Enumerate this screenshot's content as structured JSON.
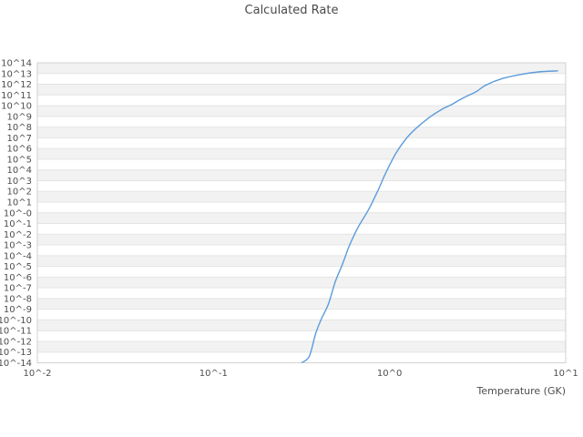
{
  "page": {
    "title": "Calculated Rate"
  },
  "chart_data": {
    "type": "line",
    "title": "Calculated Rate",
    "xlabel": "Temperature (GK)",
    "ylabel": "",
    "x_scale": "log10",
    "y_scale": "log10",
    "xlim_log10": [
      -2,
      1
    ],
    "ylim_log10": [
      -14,
      14
    ],
    "grid": "horizontal-stripes",
    "legend": "none",
    "x_ticks": [
      {
        "label": "10^-2",
        "log10": -2
      },
      {
        "label": "10^-1",
        "log10": -1
      },
      {
        "label": "10^0",
        "log10": 0
      },
      {
        "label": "10^1",
        "log10": 1
      }
    ],
    "y_ticks": [
      {
        "label": "10^14",
        "exp": 14
      },
      {
        "label": "10^13",
        "exp": 13
      },
      {
        "label": "10^12",
        "exp": 12
      },
      {
        "label": "10^11",
        "exp": 11
      },
      {
        "label": "10^10",
        "exp": 10
      },
      {
        "label": "10^9",
        "exp": 9
      },
      {
        "label": "10^8",
        "exp": 8
      },
      {
        "label": "10^7",
        "exp": 7
      },
      {
        "label": "10^6",
        "exp": 6
      },
      {
        "label": "10^5",
        "exp": 5
      },
      {
        "label": "10^4",
        "exp": 4
      },
      {
        "label": "10^3",
        "exp": 3
      },
      {
        "label": "10^2",
        "exp": 2
      },
      {
        "label": "10^1",
        "exp": 1
      },
      {
        "label": "10^-0",
        "exp": 0
      },
      {
        "label": "10^-1",
        "exp": -1
      },
      {
        "label": "10^-2",
        "exp": -2
      },
      {
        "label": "10^-3",
        "exp": -3
      },
      {
        "label": "10^-4",
        "exp": -4
      },
      {
        "label": "10^-5",
        "exp": -5
      },
      {
        "label": "10^-6",
        "exp": -6
      },
      {
        "label": "10^-7",
        "exp": -7
      },
      {
        "label": "10^-8",
        "exp": -8
      },
      {
        "label": "10^-9",
        "exp": -9
      },
      {
        "label": "10^-10",
        "exp": -10
      },
      {
        "label": "10^-11",
        "exp": -11
      },
      {
        "label": "10^-12",
        "exp": -12
      },
      {
        "label": "10^-13",
        "exp": -13
      },
      {
        "label": "10^-14",
        "exp": -14
      }
    ],
    "series": [
      {
        "name": "calculated-rate",
        "color": "#5b9cdc",
        "points_T_GK_log10rate": [
          [
            0.316,
            -14.0
          ],
          [
            0.35,
            -13.4
          ],
          [
            0.38,
            -11.3
          ],
          [
            0.41,
            -9.9
          ],
          [
            0.45,
            -8.5
          ],
          [
            0.49,
            -6.5
          ],
          [
            0.54,
            -4.8
          ],
          [
            0.59,
            -3.1
          ],
          [
            0.66,
            -1.4
          ],
          [
            0.76,
            0.3
          ],
          [
            0.86,
            2.1
          ],
          [
            0.95,
            3.7
          ],
          [
            1.1,
            5.7
          ],
          [
            1.3,
            7.3
          ],
          [
            1.65,
            8.8
          ],
          [
            2.0,
            9.7
          ],
          [
            2.25,
            10.1
          ],
          [
            2.6,
            10.7
          ],
          [
            3.1,
            11.3
          ],
          [
            3.5,
            11.9
          ],
          [
            4.3,
            12.5
          ],
          [
            5.5,
            12.9
          ],
          [
            7.0,
            13.15
          ],
          [
            9.0,
            13.25
          ]
        ]
      }
    ],
    "colors": {
      "background": "#ffffff",
      "stripe": "#f2f2f2",
      "gridline": "#e4e4e4",
      "border": "#d2d2d2",
      "text": "#4d4d4d",
      "line": "#5b9cdc"
    }
  }
}
